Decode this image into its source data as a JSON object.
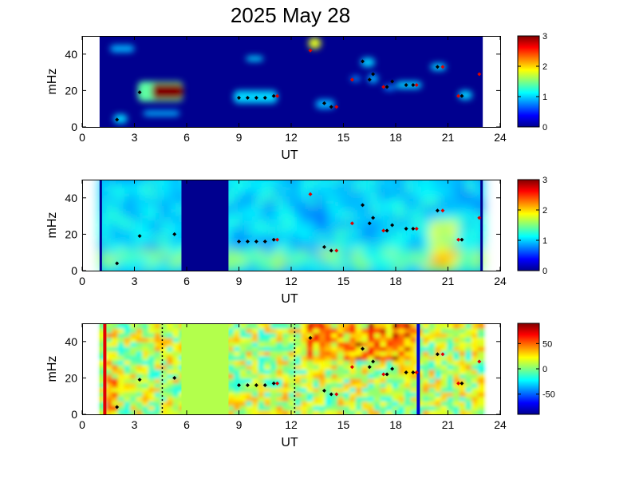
{
  "title": "2025 May 28",
  "chart_data": [
    {
      "type": "heatmap",
      "xlabel": "UT",
      "ylabel": "mHz",
      "xlim": [
        0,
        24
      ],
      "ylim": [
        0,
        50
      ],
      "xticks": [
        "0",
        "3",
        "6",
        "9",
        "12",
        "15",
        "18",
        "21",
        "24"
      ],
      "yticks": [
        "0",
        "20",
        "40"
      ],
      "colorbar": {
        "min": 0,
        "max": 3,
        "ticks": [
          "0",
          "1",
          "2",
          "3"
        ]
      },
      "background": "#00008f",
      "data_extent": [
        1,
        23
      ],
      "blobs": [
        {
          "x1": 1.8,
          "x2": 2.6,
          "y1": 2,
          "y2": 7,
          "v": 1.0
        },
        {
          "x1": 3.2,
          "x2": 5.8,
          "y1": 14,
          "y2": 25,
          "v": 1.4
        },
        {
          "x1": 4.0,
          "x2": 5.8,
          "y1": 15,
          "y2": 24,
          "v": 3.0
        },
        {
          "x1": 1.6,
          "x2": 3.0,
          "y1": 41,
          "y2": 45,
          "v": 0.9
        },
        {
          "x1": 3.5,
          "x2": 5.6,
          "y1": 6,
          "y2": 9,
          "v": 0.9
        },
        {
          "x1": 8.7,
          "x2": 11.2,
          "y1": 13,
          "y2": 20,
          "v": 1.0
        },
        {
          "x1": 9.4,
          "x2": 10.4,
          "y1": 36,
          "y2": 39,
          "v": 1.0
        },
        {
          "x1": 13.0,
          "x2": 13.7,
          "y1": 43,
          "y2": 49,
          "v": 1.8
        },
        {
          "x1": 13.4,
          "x2": 14.5,
          "y1": 10,
          "y2": 15,
          "v": 0.9
        },
        {
          "x1": 16.0,
          "x2": 16.8,
          "y1": 33,
          "y2": 38,
          "v": 1.0
        },
        {
          "x1": 16.4,
          "x2": 17.0,
          "y1": 24,
          "y2": 29,
          "v": 0.9
        },
        {
          "x1": 18.0,
          "x2": 19.5,
          "y1": 21,
          "y2": 25,
          "v": 1.0
        },
        {
          "x1": 20.0,
          "x2": 20.9,
          "y1": 31,
          "y2": 35,
          "v": 1.0
        },
        {
          "x1": 21.6,
          "x2": 22.4,
          "y1": 15,
          "y2": 20,
          "v": 1.0
        },
        {
          "x1": 15.4,
          "x2": 16.0,
          "y1": 25,
          "y2": 28,
          "v": 0.8
        },
        {
          "x1": 17.3,
          "x2": 18.0,
          "y1": 20,
          "y2": 23,
          "v": 0.8
        }
      ],
      "markers_black": [
        [
          2.0,
          4
        ],
        [
          3.3,
          19
        ],
        [
          9.0,
          16
        ],
        [
          9.5,
          16
        ],
        [
          10.0,
          16
        ],
        [
          10.5,
          16
        ],
        [
          11.0,
          17
        ],
        [
          13.9,
          13
        ],
        [
          14.3,
          11
        ],
        [
          16.1,
          36
        ],
        [
          16.7,
          29
        ],
        [
          16.5,
          26
        ],
        [
          17.5,
          22
        ],
        [
          18.6,
          23
        ],
        [
          19.0,
          23
        ],
        [
          20.4,
          33
        ],
        [
          21.8,
          17
        ],
        [
          17.8,
          25
        ]
      ],
      "markers_red": [
        [
          13.1,
          42
        ],
        [
          15.5,
          26
        ],
        [
          17.3,
          22
        ],
        [
          19.2,
          23
        ],
        [
          20.7,
          33
        ],
        [
          21.6,
          17
        ],
        [
          22.8,
          29
        ],
        [
          11.2,
          17
        ],
        [
          14.6,
          11
        ]
      ]
    },
    {
      "type": "heatmap",
      "xlabel": "UT",
      "ylabel": "mHz",
      "xlim": [
        0,
        24
      ],
      "ylim": [
        0,
        50
      ],
      "xticks": [
        "0",
        "3",
        "6",
        "9",
        "12",
        "15",
        "18",
        "21",
        "24"
      ],
      "yticks": [
        "0",
        "20",
        "40"
      ],
      "colorbar": {
        "min": 0,
        "max": 3,
        "ticks": [
          "0",
          "1",
          "2",
          "3"
        ]
      },
      "data_extent": [
        1,
        23
      ],
      "gaps": [
        [
          5.7,
          8.4
        ]
      ],
      "markers_black": [
        [
          2.0,
          4
        ],
        [
          3.3,
          19
        ],
        [
          5.3,
          20
        ],
        [
          9.0,
          16
        ],
        [
          9.5,
          16
        ],
        [
          10.0,
          16
        ],
        [
          10.5,
          16
        ],
        [
          11.0,
          17
        ],
        [
          13.9,
          13
        ],
        [
          14.3,
          11
        ],
        [
          16.1,
          36
        ],
        [
          16.7,
          29
        ],
        [
          16.5,
          26
        ],
        [
          17.5,
          22
        ],
        [
          18.6,
          23
        ],
        [
          19.0,
          23
        ],
        [
          20.4,
          33
        ],
        [
          21.8,
          17
        ],
        [
          17.8,
          25
        ]
      ],
      "markers_red": [
        [
          13.1,
          42
        ],
        [
          15.5,
          26
        ],
        [
          17.3,
          22
        ],
        [
          19.2,
          23
        ],
        [
          20.7,
          33
        ],
        [
          21.6,
          17
        ],
        [
          22.8,
          29
        ],
        [
          11.2,
          17
        ],
        [
          14.6,
          11
        ]
      ]
    },
    {
      "type": "heatmap",
      "xlabel": "UT",
      "ylabel": "mHz",
      "xlim": [
        0,
        24
      ],
      "ylim": [
        0,
        50
      ],
      "xticks": [
        "0",
        "3",
        "6",
        "9",
        "12",
        "15",
        "18",
        "21",
        "24"
      ],
      "yticks": [
        "0",
        "20",
        "40"
      ],
      "colorbar": {
        "min": -90,
        "max": 90,
        "ticks": [
          "50",
          "0",
          "-50"
        ]
      },
      "data_extent": [
        1,
        23
      ],
      "gaps": [
        [
          5.7,
          8.4
        ]
      ],
      "vlines": [
        {
          "x": 1.3,
          "color": "#e00000",
          "style": "solid"
        },
        {
          "x": 4.6,
          "color": "#000000",
          "style": "dotted"
        },
        {
          "x": 12.2,
          "color": "#000000",
          "style": "dotted"
        },
        {
          "x": 19.3,
          "color": "#0000cc",
          "style": "solid"
        }
      ],
      "markers_black": [
        [
          2.0,
          4
        ],
        [
          3.3,
          19
        ],
        [
          5.3,
          20
        ],
        [
          9.0,
          16
        ],
        [
          9.5,
          16
        ],
        [
          10.0,
          16
        ],
        [
          10.5,
          16
        ],
        [
          11.0,
          17
        ],
        [
          13.9,
          13
        ],
        [
          14.3,
          11
        ],
        [
          16.1,
          36
        ],
        [
          16.7,
          29
        ],
        [
          16.5,
          26
        ],
        [
          17.5,
          22
        ],
        [
          18.6,
          23
        ],
        [
          19.0,
          23
        ],
        [
          20.4,
          33
        ],
        [
          21.8,
          17
        ],
        [
          17.8,
          25
        ],
        [
          13.1,
          42
        ]
      ],
      "markers_red": [
        [
          15.5,
          26
        ],
        [
          17.3,
          22
        ],
        [
          19.2,
          23
        ],
        [
          20.7,
          33
        ],
        [
          21.6,
          17
        ],
        [
          22.8,
          29
        ],
        [
          11.2,
          17
        ],
        [
          14.6,
          11
        ]
      ]
    }
  ]
}
